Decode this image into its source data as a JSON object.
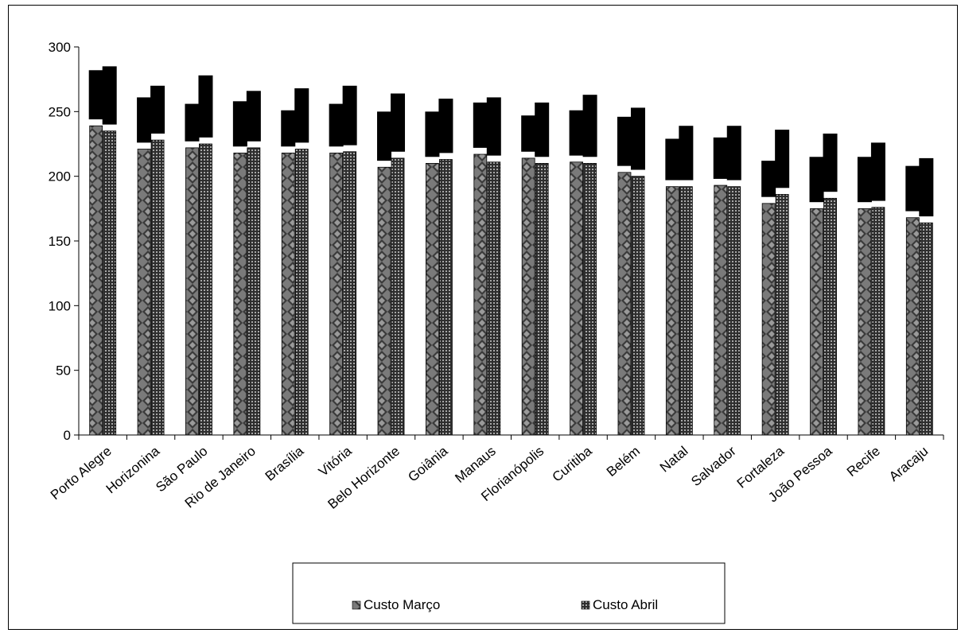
{
  "chart_data": {
    "type": "bar",
    "title": "",
    "xlabel": "",
    "ylabel": "",
    "ylim": [
      0,
      300
    ],
    "yticks": [
      0,
      50,
      100,
      150,
      200,
      250,
      300
    ],
    "grid": false,
    "legend_position": "bottom",
    "categories": [
      "Porto Alegre",
      "Horizonina",
      "São Paulo",
      "Rio de Janeiro",
      "Brasília",
      "Vitória",
      "Belo Horizonte",
      "Goiânia",
      "Manaus",
      "Florianópolis",
      "Curitiba",
      "Belém",
      "Natal",
      "Salvador",
      "Fortaleza",
      "João Pessoa",
      "Recife",
      "Aracaju"
    ],
    "series": [
      {
        "name": "Custo Março",
        "values": [
          239,
          221,
          222,
          218,
          218,
          218,
          207,
          210,
          217,
          214,
          211,
          203,
          192,
          193,
          179,
          175,
          175,
          168
        ],
        "top": [
          282,
          261,
          256,
          258,
          251,
          256,
          250,
          250,
          257,
          247,
          251,
          246,
          229,
          230,
          212,
          215,
          215,
          208
        ],
        "cap_color": "#000000",
        "pattern": "diamond"
      },
      {
        "name": "Custo Abril",
        "values": [
          235,
          228,
          225,
          222,
          221,
          219,
          214,
          213,
          211,
          210,
          210,
          200,
          192,
          192,
          186,
          183,
          176,
          164
        ],
        "top": [
          285,
          270,
          278,
          266,
          268,
          270,
          264,
          260,
          261,
          257,
          263,
          253,
          239,
          239,
          236,
          233,
          226,
          214
        ],
        "cap_color": "#000000",
        "pattern": "dots"
      }
    ]
  },
  "legend": {
    "items": [
      "Custo Março",
      "Custo Abril"
    ]
  }
}
